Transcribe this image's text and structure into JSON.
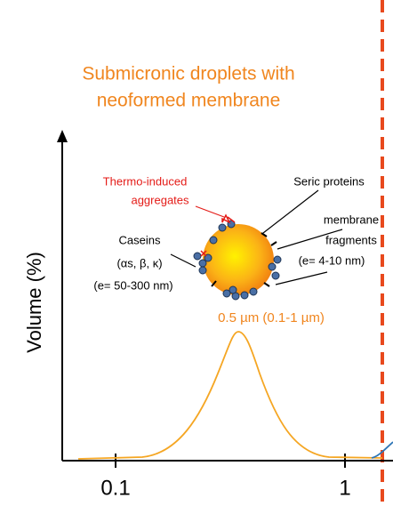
{
  "title": {
    "line1": "Submicronic droplets with",
    "line2": "neoformed membrane"
  },
  "y_axis_label": "Volume (%)",
  "x_ticks": [
    "0.1",
    "1"
  ],
  "annotations": {
    "thermo": {
      "line1": "Thermo-induced",
      "line2": "aggregates"
    },
    "seric": "Seric proteins",
    "membrane": {
      "line1": "membrane",
      "line2": "fragments",
      "line3": "(e= 4-10 nm)"
    },
    "caseins": {
      "line1": "Caseins",
      "line2": "(αs, β, κ)",
      "line3": "(e= 50-300 nm)"
    },
    "size": "0.5 µm (0.1-1 µm)"
  }
}
